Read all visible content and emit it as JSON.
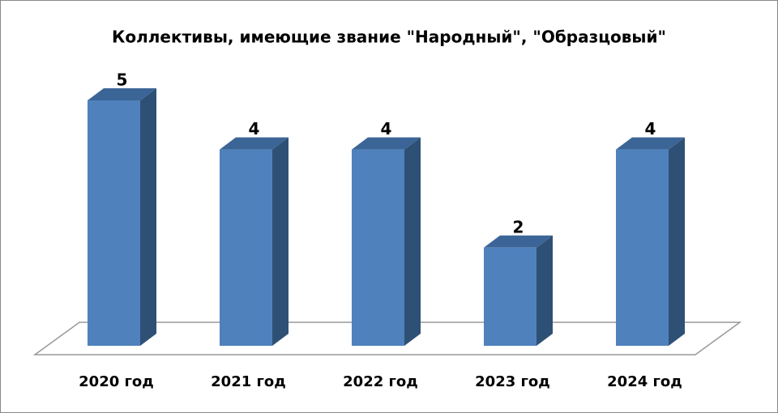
{
  "chart_data": {
    "type": "bar3d",
    "title": "Коллективы, имеющие звание \"Народный\", \"Образцовый\"",
    "categories": [
      "2020 год",
      "2021 год",
      "2022 год",
      "2023 год",
      "2024 год"
    ],
    "values": [
      5,
      4,
      4,
      2,
      4
    ],
    "color": "#4f81bd"
  }
}
